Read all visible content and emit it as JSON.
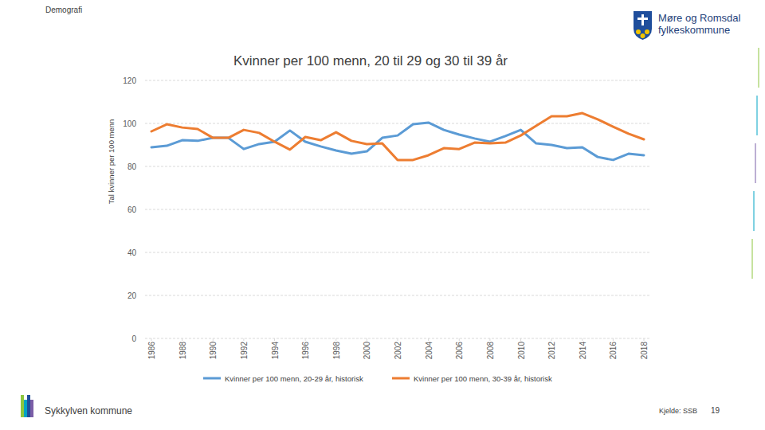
{
  "page": {
    "section": "Demografi",
    "logo": [
      "Møre og Romsdal",
      "fylkeskommune"
    ],
    "footer": "Sykkylven kommune",
    "source": "Kjelde: SSB",
    "page_number": "19"
  },
  "chart_data": {
    "type": "line",
    "title": "Kvinner per 100 menn, 20 til 29 og 30 til 39 år",
    "y_label": "Tal kvinner per 100 menn",
    "x": [
      1986,
      1987,
      1988,
      1989,
      1990,
      1991,
      1992,
      1993,
      1994,
      1995,
      1996,
      1997,
      1998,
      1999,
      2000,
      2001,
      2002,
      2003,
      2004,
      2005,
      2006,
      2007,
      2008,
      2009,
      2010,
      2011,
      2012,
      2013,
      2014,
      2015,
      2016,
      2017,
      2018
    ],
    "xlim": [
      1986,
      2018
    ],
    "xticks": [
      1986,
      1988,
      1990,
      1992,
      1994,
      1996,
      1998,
      2000,
      2002,
      2004,
      2006,
      2008,
      2010,
      2012,
      2014,
      2016,
      2018
    ],
    "ylim": [
      0,
      120
    ],
    "yticks": [
      0,
      20,
      40,
      60,
      80,
      100,
      120
    ],
    "grid": true,
    "legend": "bottom",
    "series": [
      {
        "name": "Kvinner per 100 menn, 20-29 år, historisk",
        "color": "#5b9bd5",
        "values": [
          88.9,
          89.6,
          92.2,
          91.9,
          93.3,
          93.3,
          88.1,
          90.4,
          91.5,
          96.7,
          91.5,
          89.3,
          87.4,
          85.9,
          87.0,
          93.3,
          94.4,
          99.6,
          100.4,
          97.0,
          94.8,
          93.0,
          91.5,
          94.1,
          97.0,
          90.7,
          90.0,
          88.5,
          88.9,
          84.4,
          83.0,
          85.9,
          85.2
        ]
      },
      {
        "name": "Kvinner per 100 menn, 30-39 år, historisk",
        "color": "#ed7d31",
        "values": [
          96.3,
          99.6,
          98.1,
          97.4,
          93.3,
          93.3,
          97.0,
          95.6,
          91.5,
          87.8,
          93.7,
          92.2,
          95.9,
          91.9,
          90.4,
          90.7,
          83.0,
          83.0,
          85.2,
          88.5,
          88.1,
          91.1,
          90.7,
          91.1,
          94.4,
          98.9,
          103.3,
          103.3,
          104.8,
          101.9,
          98.5,
          95.2,
          92.6
        ]
      }
    ]
  }
}
